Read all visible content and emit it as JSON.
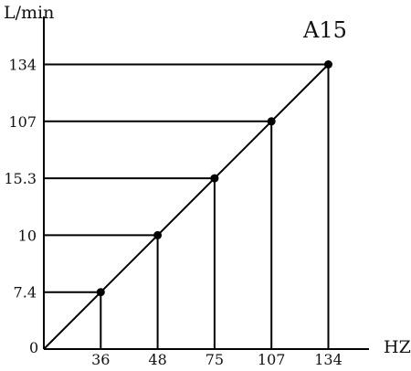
{
  "chart_data": {
    "type": "line",
    "title": "A15",
    "xlabel": "HZ",
    "ylabel": "L/min",
    "origin_label": "0",
    "x": [
      36,
      48,
      75,
      107,
      134
    ],
    "x_tick_labels": [
      "36",
      "48",
      "75",
      "107",
      "134"
    ],
    "y_tick_labels": [
      "7.4",
      "10",
      "15.3",
      "107",
      "134"
    ],
    "series": [
      {
        "values": [
          7.4,
          10,
          15.3,
          107,
          134
        ]
      }
    ],
    "line_extends_to_origin": true,
    "drop_lines_to_axes": true,
    "grid": false,
    "colors": {
      "line": "#000000",
      "marker": "#000000"
    }
  }
}
